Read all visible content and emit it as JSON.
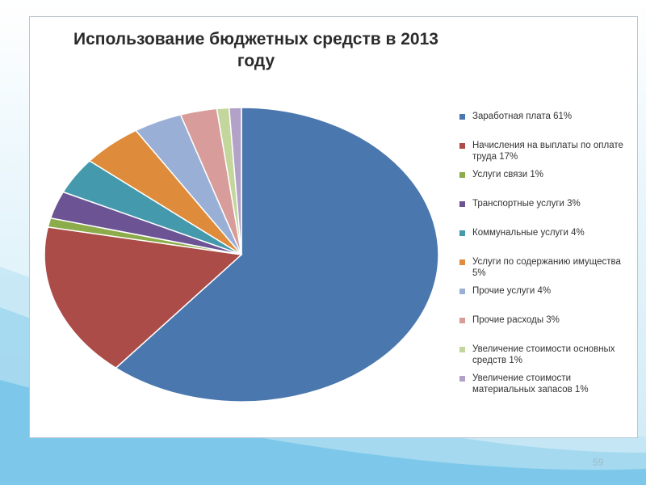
{
  "slide": {
    "number": "59"
  },
  "chart_data": {
    "type": "pie",
    "title_lines": [
      "Использование бюджетных средств в 2013",
      "году"
    ],
    "legend_placement": "right",
    "slices": [
      {
        "label": "Заработная плата 61%",
        "value": 61,
        "color": "#4a77ad"
      },
      {
        "label": "Начисления на выплаты по оплате труда 17%",
        "value": 17,
        "color": "#ac4c48"
      },
      {
        "label": "Услуги связи 1%",
        "value": 1,
        "color": "#8cab4a"
      },
      {
        "label": "Транспортные услуги 3%",
        "value": 3,
        "color": "#6c5494"
      },
      {
        "label": "Коммунальные услуги 4%",
        "value": 4,
        "color": "#4499ad"
      },
      {
        "label": "Услуги по содержанию имущества 5%",
        "value": 5,
        "color": "#de8c3c"
      },
      {
        "label": "Прочие услуги 4%",
        "value": 4,
        "color": "#9aafd6"
      },
      {
        "label": "Прочие расходы 3%",
        "value": 3,
        "color": "#d89c9a"
      },
      {
        "label": "Увеличение стоимости основных средств 1%",
        "value": 1,
        "color": "#c3d69b"
      },
      {
        "label": "Увеличение стоимости материальных запасов 1%",
        "value": 1,
        "color": "#b3a2c7"
      }
    ]
  }
}
